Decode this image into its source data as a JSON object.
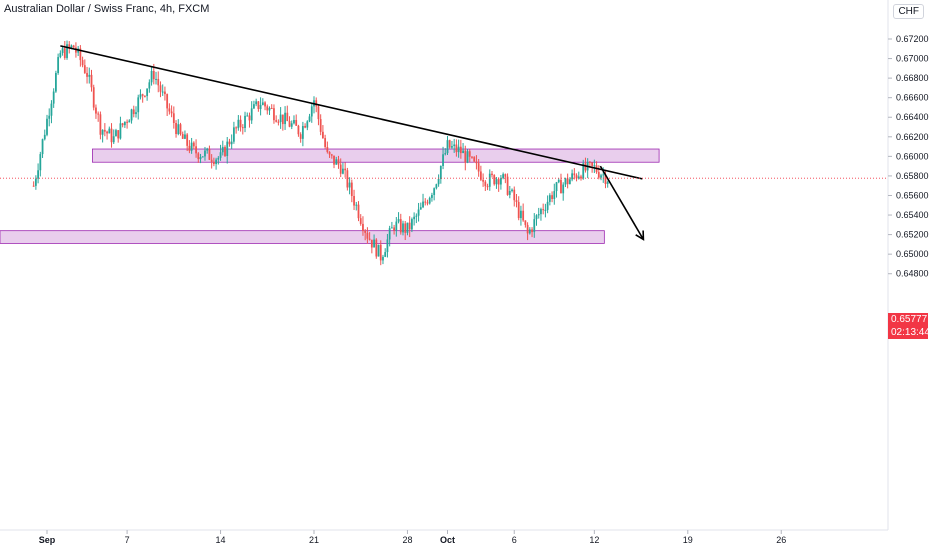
{
  "header": {
    "title": "Australian Dollar / Swiss Franc, 4h, FXCM",
    "currency_badge": "CHF"
  },
  "colors": {
    "up": "#26a69a",
    "down": "#ef5350",
    "zone_fill": "#e1bee7",
    "zone_stroke": "#9c27b0",
    "price_tag": "#f23645"
  },
  "chart_data": {
    "type": "candlestick",
    "symbol": "AUDCHF",
    "interval": "4h",
    "y_axis": {
      "ticks": [
        "0.67200",
        "0.67000",
        "0.66800",
        "0.66600",
        "0.66400",
        "0.66200",
        "0.66000",
        "0.65800",
        "0.65600",
        "0.65400",
        "0.65200",
        "0.65000",
        "0.64800"
      ],
      "range": [
        0.6472,
        0.6732
      ]
    },
    "x_axis": {
      "ticks": [
        "Sep",
        "7",
        "14",
        "21",
        "28",
        "Oct",
        "6",
        "12",
        "19",
        "26"
      ]
    },
    "current_price": "0.65777",
    "countdown": "02:13:44",
    "anchors": [
      {
        "date": "Aug 31",
        "close": 0.657
      },
      {
        "date": "Sep 2",
        "close": 0.6705
      },
      {
        "date": "Sep 3",
        "close": 0.6712
      },
      {
        "date": "Sep 4",
        "close": 0.6685
      },
      {
        "date": "Sep 5",
        "close": 0.663
      },
      {
        "date": "Sep 6",
        "close": 0.6618
      },
      {
        "date": "Sep 8",
        "close": 0.666
      },
      {
        "date": "Sep 9",
        "close": 0.6685
      },
      {
        "date": "Sep 10",
        "close": 0.665
      },
      {
        "date": "Sep 11",
        "close": 0.662
      },
      {
        "date": "Sep 12",
        "close": 0.6605
      },
      {
        "date": "Sep 14",
        "close": 0.6598
      },
      {
        "date": "Sep 15",
        "close": 0.6625
      },
      {
        "date": "Sep 16",
        "close": 0.664
      },
      {
        "date": "Sep 17",
        "close": 0.6655
      },
      {
        "date": "Sep 18",
        "close": 0.6645
      },
      {
        "date": "Sep 20",
        "close": 0.6625
      },
      {
        "date": "Sep 21",
        "close": 0.6658
      },
      {
        "date": "Sep 22",
        "close": 0.66
      },
      {
        "date": "Sep 23",
        "close": 0.659
      },
      {
        "date": "Sep 24",
        "close": 0.6555
      },
      {
        "date": "Sep 25",
        "close": 0.652
      },
      {
        "date": "Sep 26",
        "close": 0.6498
      },
      {
        "date": "Sep 27",
        "close": 0.653
      },
      {
        "date": "Sep 28",
        "close": 0.6525
      },
      {
        "date": "Sep 29",
        "close": 0.6545
      },
      {
        "date": "Sep 30",
        "close": 0.657
      },
      {
        "date": "Oct 1",
        "close": 0.661
      },
      {
        "date": "Oct 2",
        "close": 0.6605
      },
      {
        "date": "Oct 3",
        "close": 0.659
      },
      {
        "date": "Oct 4",
        "close": 0.6575
      },
      {
        "date": "Oct 5",
        "close": 0.658
      },
      {
        "date": "Oct 6",
        "close": 0.6555
      },
      {
        "date": "Oct 7",
        "close": 0.652
      },
      {
        "date": "Oct 8",
        "close": 0.6545
      },
      {
        "date": "Oct 9",
        "close": 0.6565
      },
      {
        "date": "Oct 10",
        "close": 0.6575
      },
      {
        "date": "Oct 11",
        "close": 0.6585
      },
      {
        "date": "Oct 12",
        "close": 0.6588
      },
      {
        "date": "Oct 13",
        "close": 0.6578
      }
    ],
    "annotations": {
      "resistance_zone": {
        "date_from": "Sep 5",
        "date_to": "Oct 17",
        "price_from": 0.6594,
        "price_to": 0.66075
      },
      "support_zone": {
        "date_from": "Aug 31",
        "date_to": "Oct 12",
        "price_from": 0.6511,
        "price_to": 0.6524
      },
      "trendline": {
        "from": {
          "date": "Sep 2",
          "price": 0.6713
        },
        "to": {
          "date": "Oct 15",
          "price": 0.6577
        }
      },
      "projection_arrow": {
        "from": {
          "date": "Oct 12",
          "price": 0.659
        },
        "to": {
          "date": "Oct 15",
          "price": 0.6515
        }
      }
    }
  }
}
